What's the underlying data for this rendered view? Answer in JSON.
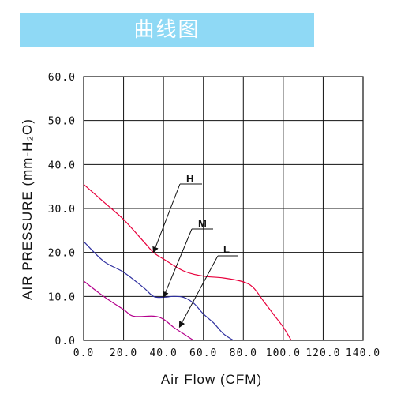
{
  "header": {
    "title": "曲线图"
  },
  "colors": {
    "banner": "#8fd9f5",
    "H": "#e8003c",
    "M": "#2e2f9f",
    "L": "#b4008c"
  },
  "chart_data": {
    "type": "line",
    "xlabel": "Air Flow (CFM)",
    "ylabel": "AIR PRESSURE (mm-H₂O)",
    "xlim": [
      0,
      140
    ],
    "ylim": [
      0,
      60
    ],
    "xticks": [
      "0.0",
      "20.0",
      "40.0",
      "60.0",
      "80.0",
      "100.0",
      "120.0",
      "140.0"
    ],
    "yticks": [
      "0.0",
      "10.0",
      "20.0",
      "30.0",
      "40.0",
      "50.0",
      "60.0"
    ],
    "grid": true,
    "series": [
      {
        "name": "H",
        "points": [
          [
            0,
            35.5
          ],
          [
            10,
            31.5
          ],
          [
            20,
            27.5
          ],
          [
            30,
            22.5
          ],
          [
            35,
            20.0
          ],
          [
            40,
            18.5
          ],
          [
            50,
            15.8
          ],
          [
            60,
            14.6
          ],
          [
            70,
            14.2
          ],
          [
            80,
            13.3
          ],
          [
            85,
            12.0
          ],
          [
            90,
            9.0
          ],
          [
            95,
            6.0
          ],
          [
            100,
            3.0
          ],
          [
            104,
            0
          ]
        ]
      },
      {
        "name": "M",
        "points": [
          [
            0,
            22.5
          ],
          [
            10,
            18.0
          ],
          [
            20,
            15.5
          ],
          [
            30,
            12.0
          ],
          [
            35,
            10.0
          ],
          [
            40,
            9.8
          ],
          [
            45,
            10.0
          ],
          [
            50,
            9.8
          ],
          [
            55,
            8.5
          ],
          [
            60,
            6.0
          ],
          [
            65,
            4.0
          ],
          [
            70,
            1.5
          ],
          [
            75,
            0
          ]
        ]
      },
      {
        "name": "L",
        "points": [
          [
            0,
            13.5
          ],
          [
            10,
            10.0
          ],
          [
            20,
            7.0
          ],
          [
            25,
            5.5
          ],
          [
            35,
            5.5
          ],
          [
            40,
            4.8
          ],
          [
            45,
            3.0
          ],
          [
            50,
            1.5
          ],
          [
            55,
            0
          ]
        ]
      }
    ],
    "annotations": [
      {
        "label": "H",
        "target": [
          35,
          20.0
        ]
      },
      {
        "label": "M",
        "target": [
          40,
          9.8
        ]
      },
      {
        "label": "L",
        "target": [
          48,
          3.0
        ]
      }
    ]
  }
}
